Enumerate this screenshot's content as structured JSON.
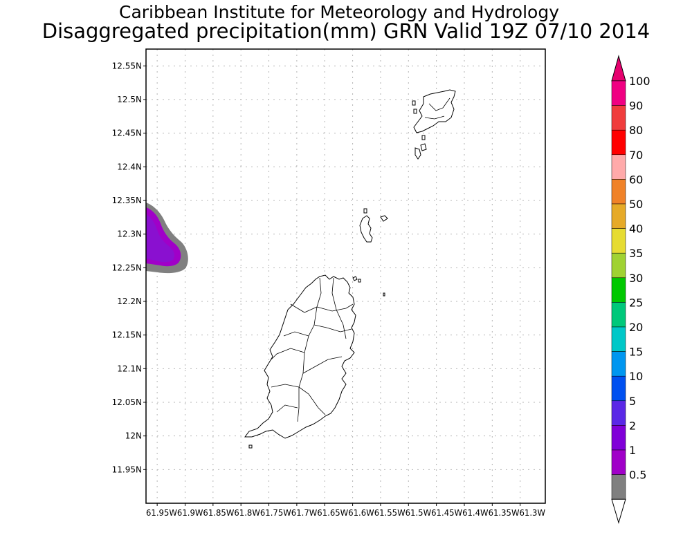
{
  "title": {
    "line1": "Caribbean Institute for Meteorology and Hydrology",
    "line2": "Disaggregated precipitation(mm) GRN Valid 19Z 07/10 2014"
  },
  "map": {
    "lat_labels": [
      "12.55N",
      "12.5N",
      "12.45N",
      "12.4N",
      "12.35N",
      "12.3N",
      "12.25N",
      "12.2N",
      "12.15N",
      "12.1N",
      "12.05N",
      "12N",
      "11.95N"
    ],
    "lat_values": [
      12.55,
      12.5,
      12.45,
      12.4,
      12.35,
      12.3,
      12.25,
      12.2,
      12.15,
      12.1,
      12.05,
      12.0,
      11.95
    ],
    "lon_labels_text": "61.95W61.9W61.85W61.8W61.75W61.7W61.65W61.6W61.55W61.5W61.45W61.4W61.35W61.3W",
    "lon_values": [
      -61.95,
      -61.9,
      -61.85,
      -61.8,
      -61.75,
      -61.7,
      -61.65,
      -61.6,
      -61.55,
      -61.5,
      -61.45,
      -61.4,
      -61.35,
      -61.3
    ],
    "lat_range": [
      11.9,
      12.575
    ],
    "lon_range": [
      -61.97,
      -61.255
    ],
    "grid": true,
    "precip_area": {
      "levels_mm": [
        0.5,
        1,
        2
      ],
      "colors": [
        "#808080",
        "#a000c8",
        "#8000d8"
      ],
      "region_description_lat": [
        12.24,
        12.34
      ],
      "region_description_lon": [
        -61.97,
        -61.9
      ]
    }
  },
  "colorbar": {
    "labels": [
      "100",
      "90",
      "80",
      "70",
      "60",
      "50",
      "40",
      "35",
      "30",
      "25",
      "20",
      "15",
      "10",
      "5",
      "2",
      "1",
      "0.5"
    ],
    "colors": [
      "#f00082",
      "#f03c3c",
      "#ff0000",
      "#ffaaaa",
      "#f08228",
      "#e6aa28",
      "#e6dc32",
      "#a0d232",
      "#00c800",
      "#00c87a",
      "#00c8c8",
      "#0096f0",
      "#0050f0",
      "#5a28e6",
      "#8000d8",
      "#a000c8",
      "#808080"
    ],
    "top_arrow_color": "#e6006e",
    "bottom_arrow_color": "#ffffff"
  }
}
